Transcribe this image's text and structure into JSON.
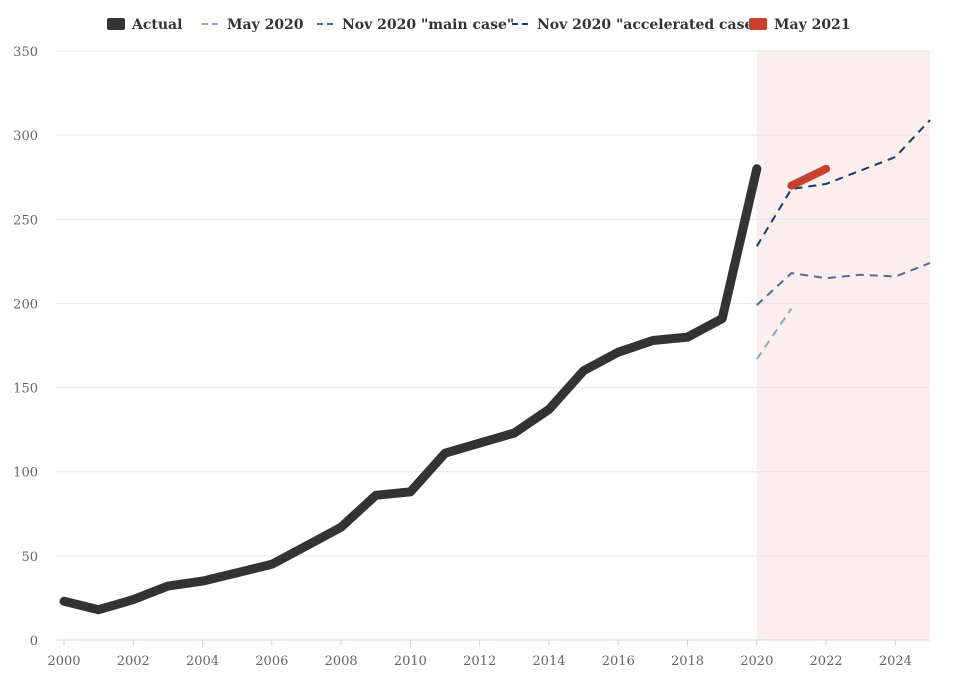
{
  "chart_data": {
    "type": "line",
    "title": "",
    "xlabel": "",
    "ylabel": "",
    "xlim": [
      2000,
      2025
    ],
    "ylim": [
      0,
      350
    ],
    "x_ticks": [
      2000,
      2002,
      2004,
      2006,
      2008,
      2010,
      2012,
      2014,
      2016,
      2018,
      2020,
      2022,
      2024
    ],
    "y_ticks": [
      0,
      50,
      100,
      150,
      200,
      250,
      300,
      350
    ],
    "grid": true,
    "legend_position": "top",
    "highlight_band": {
      "from": 2020,
      "to": 2025,
      "color": "#fbeeec"
    },
    "series": [
      {
        "name": "Actual",
        "color": "#333333",
        "style": "solid",
        "x": [
          2000,
          2001,
          2002,
          2003,
          2004,
          2005,
          2006,
          2007,
          2008,
          2009,
          2010,
          2011,
          2012,
          2013,
          2014,
          2015,
          2016,
          2017,
          2018,
          2019,
          2020
        ],
        "y": [
          23,
          18,
          24,
          32,
          35,
          40,
          45,
          56,
          67,
          86,
          88,
          111,
          117,
          123,
          137,
          160,
          171,
          178,
          180,
          191,
          280
        ]
      },
      {
        "name": "May 2020",
        "color": "#8fa7c2",
        "style": "dash",
        "x": [
          2020,
          2021
        ],
        "y": [
          167,
          197
        ]
      },
      {
        "name": "Nov 2020 \"main case\"",
        "color": "#4f6e93",
        "style": "dash",
        "x": [
          2020,
          2021,
          2022,
          2023,
          2024,
          2025
        ],
        "y": [
          199,
          218,
          215,
          217,
          216,
          224
        ]
      },
      {
        "name": "Nov 2020 \"accelerated case\"",
        "color": "#143d69",
        "style": "dash",
        "x": [
          2020,
          2021,
          2022,
          2023,
          2024,
          2025
        ],
        "y": [
          234,
          268,
          271,
          279,
          287,
          309
        ]
      },
      {
        "name": "May 2021",
        "color": "#c8412f",
        "style": "solid",
        "x": [
          2021,
          2022
        ],
        "y": [
          270,
          280
        ]
      }
    ]
  }
}
